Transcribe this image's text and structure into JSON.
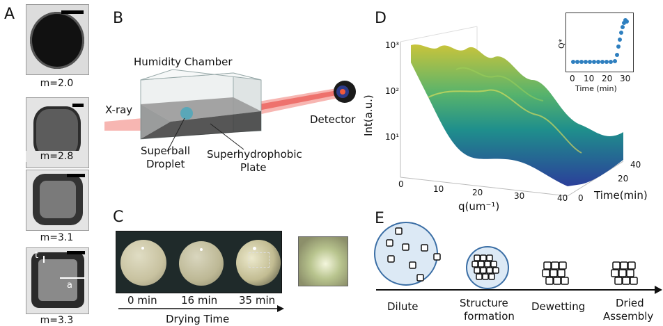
{
  "panels": {
    "a": "A",
    "b": "B",
    "c": "C",
    "d": "D",
    "e": "E"
  },
  "panel_a": {
    "labels": [
      "m=2.0",
      "m=2.8",
      "m=3.1",
      "m=3.3"
    ],
    "annot_t": "t",
    "annot_a": "a"
  },
  "panel_b": {
    "chamber": "Humidity Chamber",
    "xray": "X-ray",
    "detector": "Detector",
    "droplet_l1": "Superball",
    "droplet_l2": "Droplet",
    "plate_l1": "Superhydrophobic",
    "plate_l2": "Plate"
  },
  "panel_c": {
    "times": [
      "0 min",
      "16 min",
      "35 min"
    ],
    "axis": "Drying Time"
  },
  "panel_d": {
    "ylabel": "Int(a.u.)",
    "xlabel": "q(um⁻¹)",
    "zlabel": "Time(min)",
    "yticks": [
      "10¹",
      "10²",
      "10³"
    ],
    "xticks": [
      "0",
      "10",
      "20",
      "30",
      "40"
    ],
    "zticks": [
      "0",
      "20",
      "40"
    ],
    "inset": {
      "ylabel": "Q*",
      "xlabel": "Time (min)",
      "xticks": [
        "0",
        "10",
        "20",
        "30"
      ]
    }
  },
  "panel_e": {
    "stages": [
      "Dilute",
      "Structure",
      "formation",
      "Dewetting",
      "Dried",
      "Assembly"
    ]
  },
  "colors": {
    "beam": "#e8453f",
    "droplet": "#5aa7b8",
    "surface_high": "#d8d33a",
    "surface_low": "#2b3f9a",
    "inset_pts": "#2e7fbf",
    "dilute_fill": "#dce9f5"
  }
}
